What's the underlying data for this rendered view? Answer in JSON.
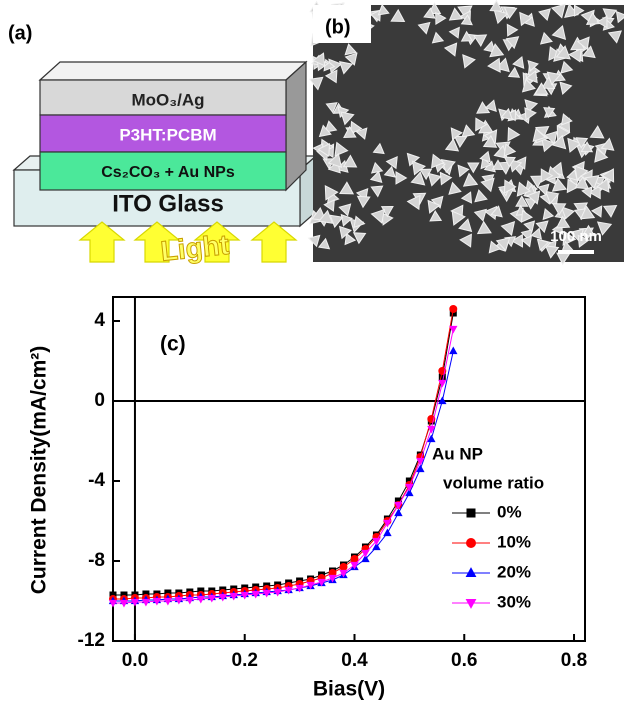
{
  "panels": {
    "a": "(a)",
    "b": "(b)",
    "c": "(c)"
  },
  "device": {
    "layers": [
      "MoO₃/Ag",
      "P3HT:PCBM",
      "Cs₂CO₃ + Au NPs",
      "ITO Glass"
    ],
    "light": "Light"
  },
  "sem": {
    "scale_bar": "100 nm"
  },
  "chart_data": {
    "type": "line",
    "x_label": "Bias(V)",
    "y_label": "Current Density(mA/cm²)",
    "legend_title": [
      "Au NP",
      "volume ratio"
    ],
    "xlim": [
      -0.04,
      0.82
    ],
    "ylim": [
      -12,
      5.2
    ],
    "xticks": [
      {
        "value": 0,
        "label": "0.0"
      },
      0.2,
      0.4,
      0.6,
      0.8
    ],
    "yticks": [
      -12,
      -8,
      -4,
      0,
      4
    ],
    "x": [
      -0.04,
      -0.02,
      0,
      0.02,
      0.04,
      0.06,
      0.08,
      0.1,
      0.12,
      0.14,
      0.16,
      0.18,
      0.2,
      0.22,
      0.24,
      0.26,
      0.28,
      0.3,
      0.32,
      0.34,
      0.36,
      0.38,
      0.4,
      0.42,
      0.44,
      0.46,
      0.48,
      0.5,
      0.52,
      0.54,
      0.56,
      0.58
    ],
    "series": [
      {
        "name": "0%",
        "color": "#000000",
        "marker": "square",
        "values": [
          -9.7,
          -9.7,
          -9.7,
          -9.65,
          -9.65,
          -9.6,
          -9.6,
          -9.55,
          -9.5,
          -9.5,
          -9.45,
          -9.4,
          -9.35,
          -9.3,
          -9.25,
          -9.2,
          -9.1,
          -9.0,
          -8.9,
          -8.7,
          -8.5,
          -8.2,
          -7.8,
          -7.3,
          -6.7,
          -5.9,
          -5.0,
          -4.0,
          -2.7,
          -1.0,
          1.2,
          4.4
        ]
      },
      {
        "name": "10%",
        "color": "#ff0000",
        "marker": "circle",
        "values": [
          -9.9,
          -9.9,
          -9.85,
          -9.85,
          -9.8,
          -9.8,
          -9.75,
          -9.7,
          -9.7,
          -9.65,
          -9.6,
          -9.55,
          -9.5,
          -9.45,
          -9.4,
          -9.35,
          -9.25,
          -9.15,
          -9.0,
          -8.85,
          -8.6,
          -8.3,
          -7.9,
          -7.4,
          -6.8,
          -6.0,
          -5.2,
          -4.2,
          -2.8,
          -0.9,
          1.5,
          4.6
        ]
      },
      {
        "name": "20%",
        "color": "#0000ff",
        "marker": "triangle-up",
        "values": [
          -10.0,
          -10.0,
          -10.0,
          -9.95,
          -9.95,
          -9.9,
          -9.9,
          -9.85,
          -9.8,
          -9.8,
          -9.75,
          -9.7,
          -9.65,
          -9.6,
          -9.55,
          -9.5,
          -9.45,
          -9.35,
          -9.25,
          -9.1,
          -8.95,
          -8.7,
          -8.3,
          -7.9,
          -7.3,
          -6.6,
          -5.6,
          -4.6,
          -3.4,
          -1.9,
          0.0,
          2.5
        ]
      },
      {
        "name": "30%",
        "color": "#ff00ff",
        "marker": "triangle-down",
        "values": [
          -10.1,
          -10.1,
          -10.05,
          -10.05,
          -10.0,
          -10.0,
          -9.95,
          -9.95,
          -9.9,
          -9.85,
          -9.8,
          -9.75,
          -9.7,
          -9.65,
          -9.6,
          -9.55,
          -9.45,
          -9.35,
          -9.2,
          -9.05,
          -8.85,
          -8.6,
          -8.2,
          -7.6,
          -7.0,
          -6.1,
          -5.2,
          -4.3,
          -3.0,
          -1.4,
          0.9,
          3.6
        ]
      }
    ]
  }
}
